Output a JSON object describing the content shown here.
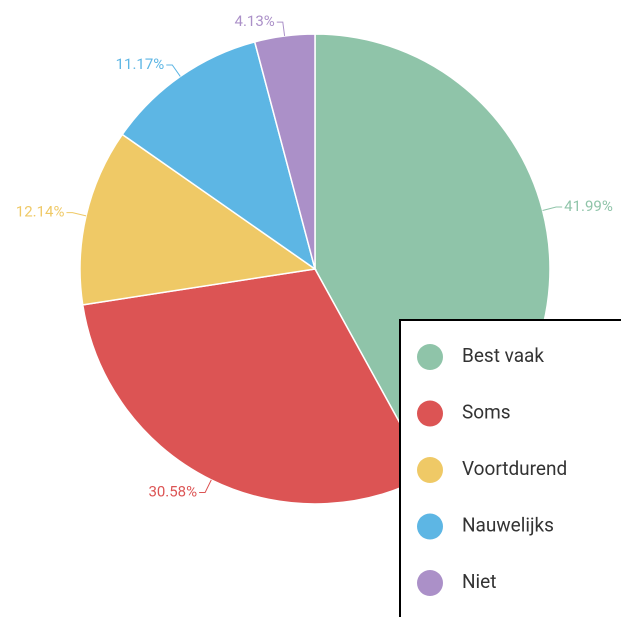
{
  "chart_data": {
    "type": "pie",
    "categories": [
      "Best vaak",
      "Soms",
      "Voortdurend",
      "Nauwelijks",
      "Niet"
    ],
    "values": [
      41.99,
      30.58,
      12.14,
      11.17,
      4.13
    ],
    "value_labels": [
      "41.99%",
      "30.58%",
      "12.14%",
      "11.17%",
      "4.13%"
    ],
    "colors": [
      "#8fc4a9",
      "#dc5454",
      "#efc966",
      "#5db6e4",
      "#ab90c8"
    ],
    "legend": "bottom-right"
  }
}
